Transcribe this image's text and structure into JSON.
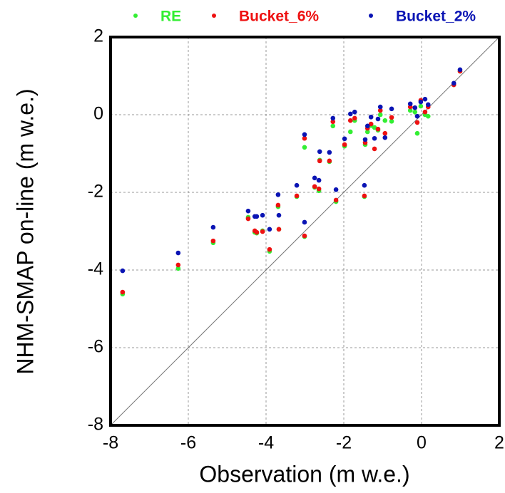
{
  "chart_data": {
    "type": "scatter",
    "x_label": "Observation (m w.e.)",
    "y_label": "NHM-SMAP on-line (m w.e.)",
    "xlim": [
      -8,
      2
    ],
    "ylim": [
      -8,
      2
    ],
    "xticks": [
      -8,
      -6,
      -4,
      -2,
      0,
      2
    ],
    "yticks": [
      -8,
      -6,
      -4,
      -2,
      0,
      2
    ],
    "grid": true,
    "legend": "top",
    "x": [
      -7.69,
      -6.26,
      -5.36,
      -4.46,
      -4.29,
      -4.24,
      -4.09,
      -3.91,
      -3.69,
      -3.67,
      -3.21,
      -3.01,
      -3.01,
      -2.75,
      -2.64,
      -2.62,
      -2.37,
      -2.28,
      -2.2,
      -1.98,
      -1.83,
      -1.72,
      -1.47,
      -1.45,
      -1.39,
      -1.3,
      -1.21,
      -1.12,
      -1.06,
      -0.94,
      -0.77,
      -0.29,
      -0.17,
      -0.11,
      -0.02,
      0.09,
      0.17,
      0.83,
      0.99
    ],
    "series": [
      {
        "name": "RE",
        "color": "#33ee33",
        "values": [
          -4.62,
          -3.96,
          -3.3,
          -2.64,
          -3.03,
          -3.05,
          -2.99,
          -3.52,
          -2.37,
          -2.95,
          -2.11,
          -0.84,
          -3.14,
          -1.87,
          -1.96,
          -1.17,
          -1.21,
          -0.29,
          -2.24,
          -0.81,
          -0.44,
          -0.15,
          -2.11,
          -0.77,
          -0.44,
          -0.28,
          -0.33,
          -0.4,
          0.0,
          -0.15,
          -0.17,
          0.11,
          0.07,
          -0.48,
          0.22,
          0.0,
          -0.04,
          0.77,
          1.12
        ]
      },
      {
        "name": "Bucket_6%",
        "color": "#ee1111",
        "values": [
          -4.57,
          -3.87,
          -3.25,
          -2.68,
          -2.99,
          -3.03,
          -3.01,
          -3.47,
          -2.33,
          -2.95,
          -2.09,
          -0.61,
          -3.12,
          -1.85,
          -1.91,
          -1.19,
          -1.19,
          -0.18,
          -2.2,
          -0.77,
          -0.15,
          -0.09,
          -2.09,
          -0.72,
          -0.35,
          -0.24,
          -0.88,
          -0.37,
          0.11,
          -0.48,
          -0.07,
          0.2,
          0.18,
          -0.2,
          0.37,
          0.07,
          0.2,
          0.77,
          1.12
        ]
      },
      {
        "name": "Bucket_2%",
        "color": "#0a14b4",
        "values": [
          -4.02,
          -3.56,
          -2.9,
          -2.48,
          -2.62,
          -2.62,
          -2.59,
          -2.95,
          -2.06,
          -2.59,
          -1.82,
          -0.51,
          -2.77,
          -1.63,
          -1.69,
          -0.95,
          -0.97,
          -0.09,
          -1.93,
          -0.62,
          0.02,
          0.07,
          -1.82,
          -0.64,
          -0.29,
          -0.06,
          -0.61,
          -0.11,
          0.2,
          -0.59,
          0.15,
          0.28,
          0.18,
          -0.04,
          0.33,
          0.4,
          0.26,
          0.81,
          1.16
        ]
      }
    ]
  }
}
